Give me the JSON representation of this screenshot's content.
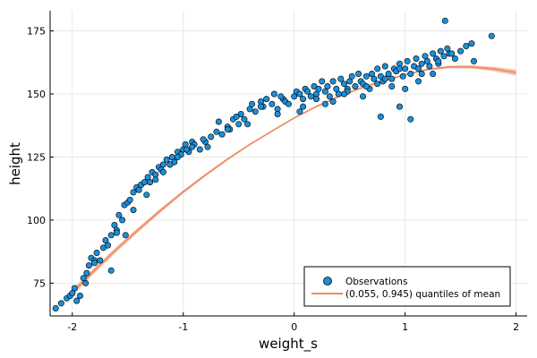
{
  "chart_data": {
    "type": "scatter",
    "title": "",
    "xlabel": "weight_s",
    "ylabel": "height",
    "xlim": [
      -2.2,
      2.1
    ],
    "ylim": [
      62,
      183
    ],
    "xticks": [
      -2,
      -1,
      0,
      1,
      2
    ],
    "xtick_labels": [
      "-2",
      "-1",
      "0",
      "1",
      "2"
    ],
    "yticks": [
      75,
      100,
      125,
      150,
      175
    ],
    "ytick_labels": [
      "75",
      "100",
      "125",
      "150",
      "175"
    ],
    "grid": true,
    "legend_position": "bottom-right",
    "series": [
      {
        "name": "Observations",
        "kind": "scatter",
        "color": "#1b8fd9",
        "x": [
          -2.15,
          -2.1,
          -2.05,
          -2.02,
          -1.98,
          -1.96,
          -1.93,
          -1.9,
          -1.88,
          -1.87,
          -1.85,
          -1.83,
          -1.8,
          -1.78,
          -1.75,
          -1.72,
          -1.7,
          -1.68,
          -1.65,
          -1.62,
          -1.6,
          -1.58,
          -1.55,
          -1.53,
          -1.5,
          -1.48,
          -1.45,
          -1.42,
          -1.4,
          -1.38,
          -1.35,
          -1.32,
          -1.3,
          -1.28,
          -1.25,
          -1.22,
          -1.2,
          -1.18,
          -1.15,
          -1.12,
          -1.1,
          -1.08,
          -1.05,
          -1.02,
          -1.0,
          -0.98,
          -0.95,
          -0.92,
          -0.9,
          -0.85,
          -0.8,
          -0.78,
          -0.75,
          -0.7,
          -0.65,
          -0.6,
          -0.58,
          -0.55,
          -0.5,
          -0.48,
          -0.45,
          -0.4,
          -0.38,
          -0.35,
          -0.3,
          -0.28,
          -0.25,
          -0.2,
          -0.18,
          -0.15,
          -0.1,
          -0.08,
          -0.05,
          0.0,
          0.02,
          0.05,
          0.08,
          0.1,
          0.12,
          0.15,
          0.18,
          0.2,
          0.22,
          0.25,
          0.28,
          0.3,
          0.32,
          0.35,
          0.38,
          0.4,
          0.42,
          0.45,
          0.48,
          0.5,
          0.52,
          0.55,
          0.58,
          0.6,
          0.62,
          0.65,
          0.68,
          0.7,
          0.72,
          0.75,
          0.78,
          0.8,
          0.82,
          0.85,
          0.88,
          0.9,
          0.92,
          0.95,
          0.98,
          1.0,
          1.02,
          1.05,
          1.08,
          1.1,
          1.12,
          1.15,
          1.18,
          1.2,
          1.22,
          1.25,
          1.28,
          1.3,
          1.32,
          1.35,
          1.38,
          1.4,
          1.45,
          1.5,
          1.55,
          1.62,
          1.78,
          -1.65,
          -1.52,
          -1.33,
          -1.18,
          -1.05,
          -0.92,
          -0.82,
          -0.6,
          -0.42,
          -0.15,
          0.08,
          0.2,
          0.35,
          0.48,
          0.62,
          0.75,
          0.88,
          1.0,
          1.12,
          1.25,
          -2.0,
          -1.8,
          -1.6,
          -1.45,
          -1.25,
          -1.12,
          -0.97,
          -0.68,
          -0.52,
          -0.3,
          -0.12,
          0.05,
          0.28,
          0.45,
          0.65,
          0.82,
          0.95,
          1.15,
          1.3,
          1.42,
          1.6,
          1.36,
          0.78,
          0.95,
          1.05
        ],
        "y": [
          65,
          67,
          69,
          70,
          73,
          68,
          70,
          77,
          75,
          79,
          82,
          85,
          84,
          87,
          84,
          89,
          92,
          90,
          94,
          98,
          96,
          102,
          100,
          106,
          107,
          108,
          111,
          113,
          112,
          114,
          115,
          117,
          115,
          119,
          118,
          121,
          120,
          122,
          124,
          122,
          125,
          123,
          127,
          126,
          128,
          130,
          127,
          131,
          130,
          128,
          131,
          129,
          133,
          135,
          134,
          137,
          136,
          140,
          138,
          142,
          140,
          144,
          146,
          143,
          147,
          145,
          148,
          146,
          150,
          144,
          148,
          147,
          146,
          149,
          151,
          150,
          148,
          152,
          151,
          149,
          153,
          150,
          152,
          155,
          151,
          153,
          149,
          155,
          152,
          150,
          156,
          154,
          152,
          155,
          157,
          153,
          158,
          155,
          154,
          157,
          152,
          158,
          156,
          160,
          157,
          155,
          161,
          158,
          156,
          160,
          159,
          162,
          157,
          160,
          163,
          158,
          161,
          164,
          160,
          162,
          165,
          163,
          161,
          166,
          164,
          162,
          167,
          165,
          168,
          166,
          164,
          167,
          169,
          163,
          173,
          80,
          94,
          110,
          119,
          125,
          129,
          132,
          136,
          138,
          142,
          145,
          148,
          147,
          151,
          149,
          154,
          153,
          152,
          155,
          158,
          71,
          83,
          95,
          104,
          116,
          122,
          128,
          139,
          141,
          145,
          149,
          143,
          146,
          150,
          153,
          156,
          160,
          158,
          163,
          166,
          170,
          179,
          141,
          145,
          140
        ]
      },
      {
        "name": "(0.055, 0.945) quantiles of mean",
        "kind": "band",
        "color": "#ee8a62",
        "x": [
          -2.0,
          -1.8,
          -1.6,
          -1.4,
          -1.2,
          -1.0,
          -0.8,
          -0.6,
          -0.4,
          -0.2,
          0.0,
          0.2,
          0.4,
          0.6,
          0.8,
          1.0,
          1.2,
          1.4,
          1.6,
          1.8,
          2.0
        ],
        "lower": [
          70.0,
          79.0,
          87.5,
          95.5,
          103.2,
          110.5,
          117.3,
          123.7,
          129.6,
          135.0,
          140.2,
          144.7,
          148.6,
          152.0,
          154.8,
          157.3,
          159.3,
          160.2,
          160.1,
          159.0,
          157.3
        ],
        "upper": [
          72.6,
          81.2,
          89.5,
          97.3,
          104.8,
          111.8,
          118.4,
          124.6,
          130.3,
          135.6,
          140.8,
          145.4,
          149.3,
          152.7,
          155.5,
          158.0,
          160.0,
          161.2,
          161.4,
          160.7,
          159.6
        ],
        "mean": [
          71.3,
          80.1,
          88.5,
          96.4,
          104.0,
          111.2,
          117.9,
          124.2,
          130.0,
          135.3,
          140.5,
          145.0,
          149.0,
          152.3,
          155.2,
          157.6,
          159.7,
          160.7,
          160.7,
          159.9,
          158.5
        ]
      }
    ]
  }
}
